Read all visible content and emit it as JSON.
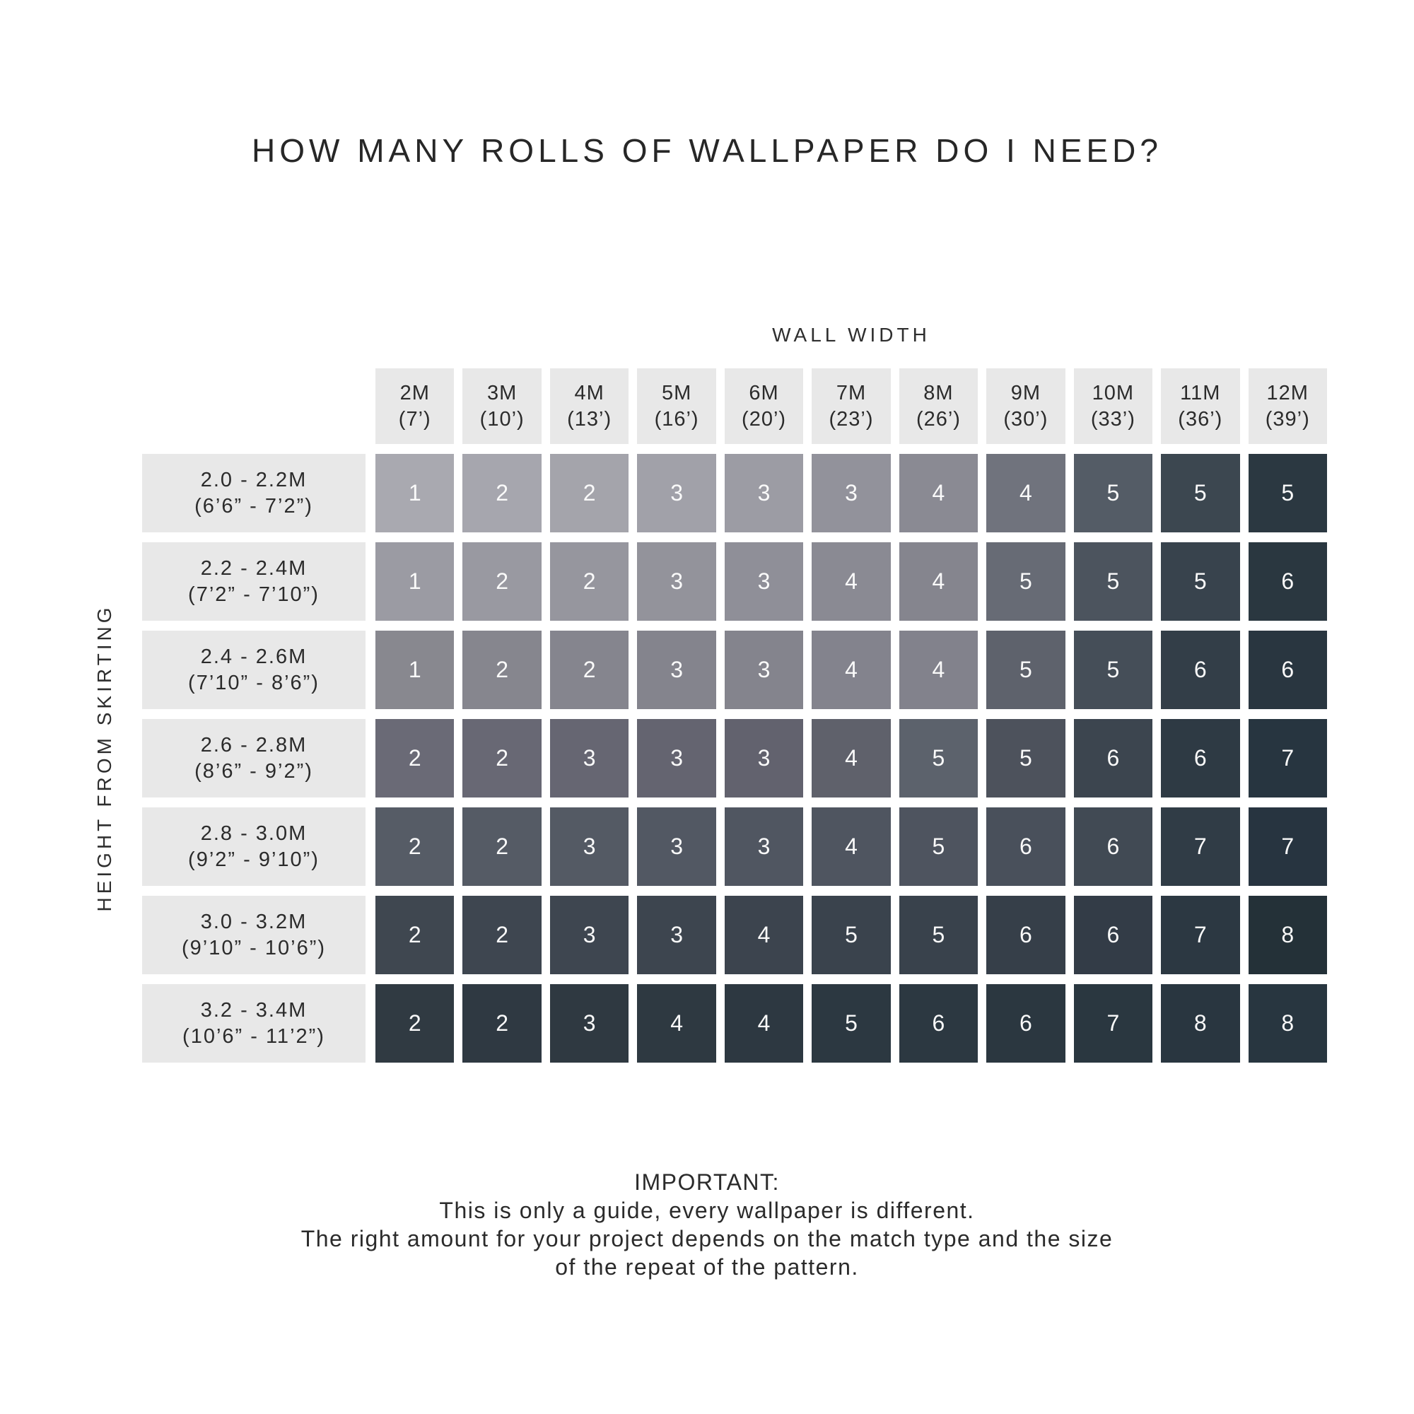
{
  "title": "HOW MANY ROLLS OF WALLPAPER DO I NEED?",
  "axis": {
    "column_title": "WALL WIDTH",
    "row_title": "HEIGHT FROM SKIRTING"
  },
  "palette": {
    "background": "#ffffff",
    "label_box_bg": "#e8e8e8",
    "label_text": "#2b2b2b",
    "cell_text": "#fafafa",
    "lightest_cell": "#a9a9b0",
    "darkest_cell": "#283640"
  },
  "table": {
    "columns": [
      {
        "m": "2M",
        "ft": "(7’)"
      },
      {
        "m": "3M",
        "ft": "(10’)"
      },
      {
        "m": "4M",
        "ft": "(13’)"
      },
      {
        "m": "5M",
        "ft": "(16’)"
      },
      {
        "m": "6M",
        "ft": "(20’)"
      },
      {
        "m": "7M",
        "ft": "(23’)"
      },
      {
        "m": "8M",
        "ft": "(26’)"
      },
      {
        "m": "9M",
        "ft": "(30’)"
      },
      {
        "m": "10M",
        "ft": "(33’)"
      },
      {
        "m": "11M",
        "ft": "(36’)"
      },
      {
        "m": "12M",
        "ft": "(39’)"
      }
    ],
    "rows": [
      {
        "metric": "2.0 - 2.2M",
        "imperial": "(6’6” - 7’2”)",
        "values": [
          1,
          2,
          2,
          3,
          3,
          3,
          4,
          4,
          5,
          5,
          5
        ],
        "colors": [
          "#a9a9b0",
          "#a6a6ae",
          "#a4a4ab",
          "#a1a1a9",
          "#9c9ca4",
          "#92929b",
          "#8a8a93",
          "#70737d",
          "#545c66",
          "#3c4750",
          "#2b3841"
        ]
      },
      {
        "metric": "2.2 - 2.4M",
        "imperial": "(7’2” - 7’10”)",
        "values": [
          1,
          2,
          2,
          3,
          3,
          4,
          4,
          5,
          5,
          5,
          6
        ],
        "colors": [
          "#9b9ba3",
          "#9999a1",
          "#96969e",
          "#93939b",
          "#8f8f98",
          "#8a8a93",
          "#85858e",
          "#676b75",
          "#4c545e",
          "#38434d",
          "#2a3740"
        ]
      },
      {
        "metric": "2.4 - 2.6M",
        "imperial": "(7’10” - 8’6”)",
        "values": [
          1,
          2,
          2,
          3,
          3,
          4,
          4,
          5,
          5,
          6,
          6
        ],
        "colors": [
          "#88888f",
          "#86868e",
          "#85858e",
          "#84848d",
          "#84848d",
          "#83838d",
          "#82828c",
          "#5e626c",
          "#454e58",
          "#333e48",
          "#293640"
        ]
      },
      {
        "metric": "2.6 - 2.8M",
        "imperial": "(8’6” - 9’2”)",
        "values": [
          2,
          2,
          3,
          3,
          3,
          4,
          5,
          5,
          6,
          6,
          7
        ],
        "colors": [
          "#6a6a76",
          "#686874",
          "#666672",
          "#646470",
          "#62626e",
          "#5f616b",
          "#5c626c",
          "#4d525c",
          "#3c454f",
          "#2e3a44",
          "#273540"
        ]
      },
      {
        "metric": "2.8 - 3.0M",
        "imperial": "(9’2” - 9’10”)",
        "values": [
          2,
          2,
          3,
          3,
          3,
          4,
          5,
          6,
          6,
          7,
          7
        ],
        "colors": [
          "#565c66",
          "#555b65",
          "#545a64",
          "#525863",
          "#505661",
          "#4f5560",
          "#4e545f",
          "#49505b",
          "#414a54",
          "#303c46",
          "#273440"
        ]
      },
      {
        "metric": "3.0 - 3.2M",
        "imperial": "(9’10” - 10’6”)",
        "values": [
          2,
          2,
          3,
          3,
          4,
          5,
          5,
          6,
          6,
          7,
          8
        ],
        "colors": [
          "#3f4750",
          "#3e4650",
          "#3e4650",
          "#3d454f",
          "#3c444e",
          "#3a434d",
          "#39424c",
          "#363f49",
          "#333c47",
          "#2c3842",
          "#243138"
        ]
      },
      {
        "metric": "3.2 - 3.4M",
        "imperial": "(10’6” - 11’2”)",
        "values": [
          2,
          2,
          3,
          4,
          4,
          5,
          6,
          6,
          7,
          8,
          8
        ],
        "colors": [
          "#303a42",
          "#2f3942",
          "#2f3941",
          "#2e3941",
          "#2d3841",
          "#2c3841",
          "#2c3841",
          "#2b3740",
          "#2a3740",
          "#293640",
          "#283640"
        ]
      }
    ]
  },
  "footer": {
    "heading": "IMPORTANT:",
    "lines": [
      "This is only a guide, every wallpaper is different.",
      "The right amount for your project depends on the match type and the size",
      "of the repeat of the pattern."
    ]
  },
  "chart_data": {
    "type": "heatmap",
    "title": "HOW MANY ROLLS OF WALLPAPER DO I NEED?",
    "xlabel": "WALL WIDTH",
    "ylabel": "HEIGHT FROM SKIRTING",
    "x_categories": [
      "2M (7’)",
      "3M (10’)",
      "4M (13’)",
      "5M (16’)",
      "6M (20’)",
      "7M (23’)",
      "8M (26’)",
      "9M (30’)",
      "10M (33’)",
      "11M (36’)",
      "12M (39’)"
    ],
    "y_categories": [
      "2.0 - 2.2M (6’6” - 7’2”)",
      "2.2 - 2.4M (7’2” - 7’10”)",
      "2.4 - 2.6M (7’10” - 8’6”)",
      "2.6 - 2.8M (8’6” - 9’2”)",
      "2.8 - 3.0M (9’2” - 9’10”)",
      "3.0 - 3.2M (9’10” - 10’6”)",
      "3.2 - 3.4M (10’6” - 11’2”)"
    ],
    "values": [
      [
        1,
        2,
        2,
        3,
        3,
        3,
        4,
        4,
        5,
        5,
        5
      ],
      [
        1,
        2,
        2,
        3,
        3,
        4,
        4,
        5,
        5,
        5,
        6
      ],
      [
        1,
        2,
        2,
        3,
        3,
        4,
        4,
        5,
        5,
        6,
        6
      ],
      [
        2,
        2,
        3,
        3,
        3,
        4,
        5,
        5,
        6,
        6,
        7
      ],
      [
        2,
        2,
        3,
        3,
        3,
        4,
        5,
        6,
        6,
        7,
        7
      ],
      [
        2,
        2,
        3,
        3,
        4,
        5,
        5,
        6,
        6,
        7,
        8
      ],
      [
        2,
        2,
        3,
        4,
        4,
        5,
        6,
        6,
        7,
        8,
        8
      ]
    ],
    "legend": "none",
    "grid": "white gaps between cells, shade darkens toward bottom-right"
  }
}
